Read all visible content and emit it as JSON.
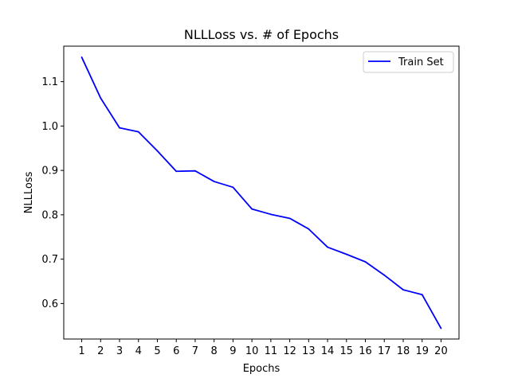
{
  "chart_data": {
    "type": "line",
    "title": "NLLLoss vs. # of Epochs",
    "xlabel": "Epochs",
    "ylabel": "NLLLoss",
    "x": [
      1,
      2,
      3,
      4,
      5,
      6,
      7,
      8,
      9,
      10,
      11,
      12,
      13,
      14,
      15,
      16,
      17,
      18,
      19,
      20
    ],
    "xlim": [
      0.05,
      20.95
    ],
    "ylim": [
      0.52,
      1.18
    ],
    "yticks": [
      0.6,
      0.7,
      0.8,
      0.9,
      1.0,
      1.1
    ],
    "ytick_labels": [
      "0.6",
      "0.7",
      "0.8",
      "0.9",
      "1.0",
      "1.1"
    ],
    "grid": false,
    "legend_position": "top-right",
    "series": [
      {
        "name": "Train Set",
        "color": "#0000ff",
        "values": [
          1.155,
          1.063,
          0.996,
          0.987,
          0.944,
          0.898,
          0.899,
          0.875,
          0.862,
          0.813,
          0.801,
          0.792,
          0.768,
          0.727,
          0.711,
          0.694,
          0.664,
          0.631,
          0.62,
          0.544
        ]
      }
    ]
  }
}
